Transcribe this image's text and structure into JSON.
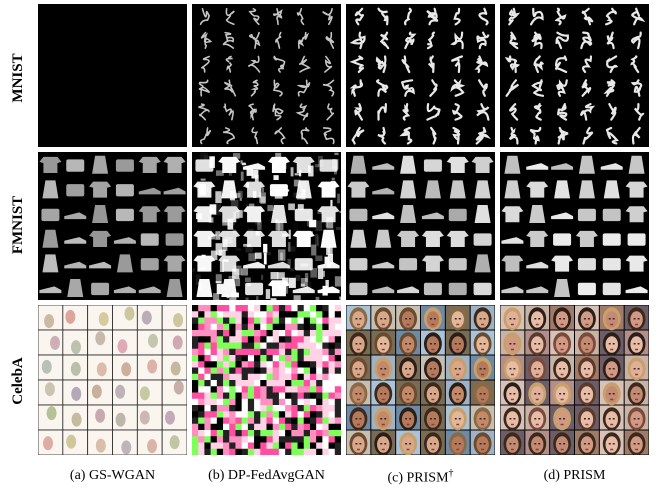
{
  "rows": [
    {
      "label": "MNIST"
    },
    {
      "label": "FMNIST"
    },
    {
      "label": "CelebA"
    }
  ],
  "columns": [
    {
      "caption": "(a) GS-WGAN"
    },
    {
      "caption": "(b) DP-FedAvgGAN"
    },
    {
      "caption_main": "(c) PRISM",
      "caption_sup": "†"
    },
    {
      "caption": "(d) PRISM"
    }
  ]
}
